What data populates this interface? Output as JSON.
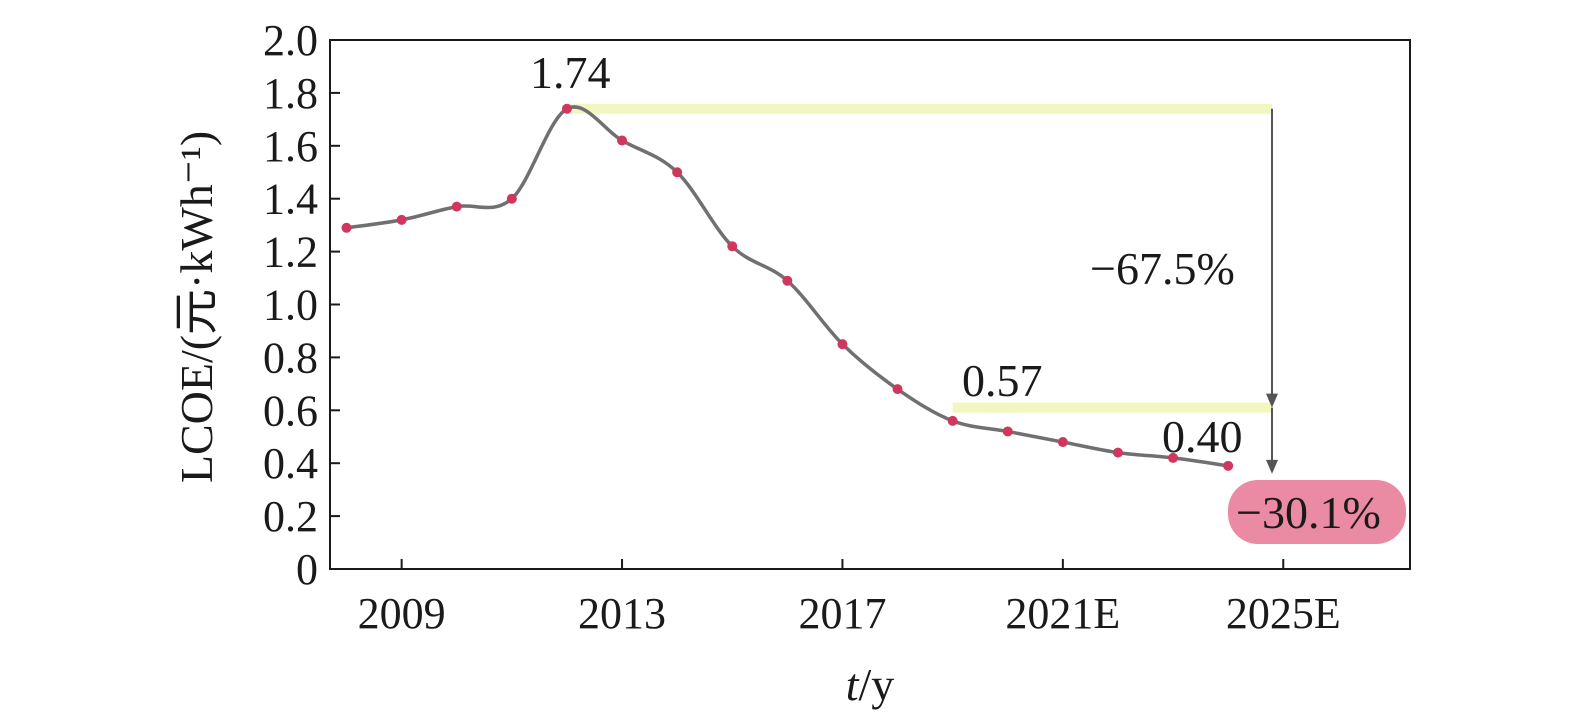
{
  "chart_data": {
    "type": "line",
    "title": "",
    "xlabel": "t/y",
    "xlabel_italic": "t",
    "xlabel_rest": "/y",
    "ylabel": "LCOE/(元·kWh⁻¹)",
    "ylim": [
      0,
      2.0
    ],
    "xlim": [
      2007.7,
      2027.3
    ],
    "yticks": [
      "0",
      "0.2",
      "0.4",
      "0.6",
      "0.8",
      "1.0",
      "1.2",
      "1.4",
      "1.6",
      "1.8",
      "2.0"
    ],
    "xticks": [
      {
        "value": 2009,
        "label": "2009"
      },
      {
        "value": 2013,
        "label": "2013"
      },
      {
        "value": 2017,
        "label": "2017"
      },
      {
        "value": 2021,
        "label": "2021E"
      },
      {
        "value": 2025,
        "label": "2025E"
      }
    ],
    "grid": false,
    "series": [
      {
        "line_color": "#707070",
        "marker_color": "#d0375f",
        "x": [
          2008,
          2009,
          2010,
          2011,
          2012,
          2013,
          2014,
          2015,
          2016,
          2017,
          2018,
          2019,
          2020,
          2021,
          2022,
          2023,
          2024
        ],
        "y": [
          1.29,
          1.32,
          1.37,
          1.4,
          1.74,
          1.62,
          1.5,
          1.22,
          1.09,
          0.85,
          0.68,
          0.56,
          0.52,
          0.48,
          0.44,
          0.42,
          0.39
        ]
      }
    ],
    "annotations": {
      "peak_label": "1.74",
      "mid_label": "0.57",
      "end_label": "0.40",
      "drop1_label": "−67.5%",
      "drop2_label": "−30.1%",
      "highlight_color": "#f2f7c0",
      "badge_color": "#eb8aa3"
    }
  }
}
